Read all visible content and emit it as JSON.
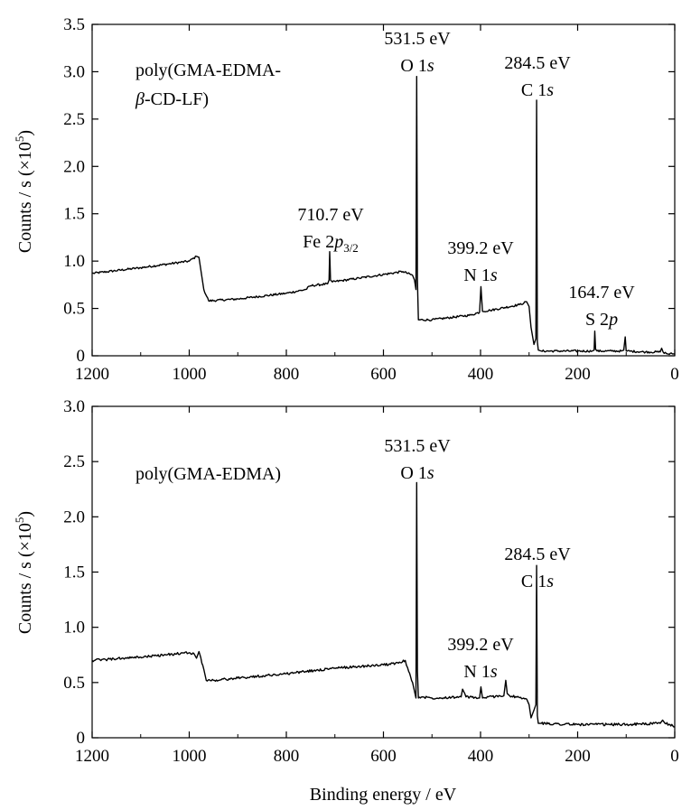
{
  "figure": {
    "xlabel": "Binding energy / eV",
    "ylabel_main": "Counts / s (×10",
    "ylabel_exp": "5",
    "ylabel_close": ")"
  },
  "chart_data": [
    {
      "type": "line",
      "title": "",
      "sample_label_line1": "poly(GMA-EDMA-",
      "sample_label_line2_greek": "β",
      "sample_label_line2_rest": "-CD-LF)",
      "xlabel": "",
      "ylabel": "Counts / s (×10^5)",
      "xlim": [
        1200,
        0
      ],
      "ylim": [
        0,
        3.5
      ],
      "x_ticks": [
        "1200",
        "1000",
        "800",
        "600",
        "400",
        "200",
        "0"
      ],
      "y_ticks": [
        "0",
        "0.5",
        "1.0",
        "1.5",
        "2.0",
        "2.5",
        "3.0",
        "3.5"
      ],
      "grid": false,
      "series": [
        {
          "x": [
            1200,
            1100,
            1000,
            985,
            980,
            970,
            960,
            900,
            800,
            760,
            750,
            715,
            712,
            710.7,
            709,
            705,
            650,
            560,
            540,
            536,
            533,
            531.5,
            530,
            528,
            500,
            420,
            402,
            399.2,
            396,
            380,
            320,
            305,
            300,
            296,
            290,
            286,
            284.5,
            283,
            281,
            275,
            200,
            170,
            166,
            164.7,
            163,
            160,
            130,
            110,
            105,
            102,
            100,
            60,
            30,
            27,
            24,
            15,
            5,
            0
          ],
          "y": [
            0.87,
            0.93,
            1.0,
            1.05,
            1.04,
            0.7,
            0.58,
            0.6,
            0.66,
            0.7,
            0.74,
            0.76,
            0.8,
            1.1,
            0.8,
            0.78,
            0.82,
            0.89,
            0.85,
            0.8,
            0.7,
            2.95,
            0.8,
            0.38,
            0.38,
            0.43,
            0.46,
            0.73,
            0.47,
            0.48,
            0.54,
            0.57,
            0.52,
            0.3,
            0.12,
            0.18,
            2.7,
            0.15,
            0.06,
            0.05,
            0.05,
            0.05,
            0.06,
            0.26,
            0.07,
            0.05,
            0.05,
            0.05,
            0.06,
            0.2,
            0.05,
            0.04,
            0.04,
            0.08,
            0.04,
            0.02,
            0.02,
            0.02
          ]
        }
      ],
      "annotations": [
        {
          "energy": "710.7 eV",
          "orbital_base": "Fe 2",
          "orbital_it": "p",
          "orbital_sub": "3/2"
        },
        {
          "energy": "531.5 eV",
          "orbital_base": "O 1",
          "orbital_it": "s"
        },
        {
          "energy": "399.2 eV",
          "orbital_base": "N 1",
          "orbital_it": "s"
        },
        {
          "energy": "284.5 eV",
          "orbital_base": "C 1",
          "orbital_it": "s"
        },
        {
          "energy": "164.7 eV",
          "orbital_base": "S 2",
          "orbital_it": "p"
        }
      ]
    },
    {
      "type": "line",
      "title": "",
      "sample_label_line1": "poly(GMA-EDMA)",
      "xlabel": "Binding energy / eV",
      "ylabel": "Counts / s (×10^5)",
      "xlim": [
        1200,
        0
      ],
      "ylim": [
        0,
        3.0
      ],
      "x_ticks": [
        "1200",
        "1000",
        "800",
        "600",
        "400",
        "200",
        "0"
      ],
      "y_ticks": [
        "0",
        "0.5",
        "1.0",
        "1.5",
        "2.0",
        "2.5",
        "3.0"
      ],
      "grid": false,
      "series": [
        {
          "x": [
            1200,
            1100,
            1000,
            990,
            985,
            980,
            970,
            965,
            950,
            900,
            800,
            700,
            600,
            565,
            555,
            548,
            540,
            536,
            533,
            531.5,
            530,
            528,
            520,
            500,
            440,
            437,
            430,
            402,
            399.2,
            396,
            360,
            352,
            348,
            345,
            340,
            305,
            300,
            296,
            290,
            286,
            284.5,
            283,
            281,
            275,
            200,
            100,
            30,
            25,
            20,
            10,
            0
          ],
          "y": [
            0.7,
            0.73,
            0.77,
            0.76,
            0.72,
            0.78,
            0.62,
            0.52,
            0.52,
            0.54,
            0.58,
            0.63,
            0.66,
            0.68,
            0.7,
            0.6,
            0.5,
            0.42,
            0.36,
            2.31,
            0.6,
            0.36,
            0.37,
            0.36,
            0.37,
            0.44,
            0.37,
            0.36,
            0.46,
            0.36,
            0.38,
            0.38,
            0.52,
            0.4,
            0.38,
            0.35,
            0.3,
            0.18,
            0.25,
            0.3,
            1.56,
            0.2,
            0.13,
            0.13,
            0.12,
            0.12,
            0.13,
            0.16,
            0.13,
            0.12,
            0.1
          ]
        }
      ],
      "annotations": [
        {
          "energy": "531.5 eV",
          "orbital_base": "O 1",
          "orbital_it": "s"
        },
        {
          "energy": "399.2 eV",
          "orbital_base": "N 1",
          "orbital_it": "s"
        },
        {
          "energy": "284.5 eV",
          "orbital_base": "C 1",
          "orbital_it": "s"
        }
      ]
    }
  ]
}
